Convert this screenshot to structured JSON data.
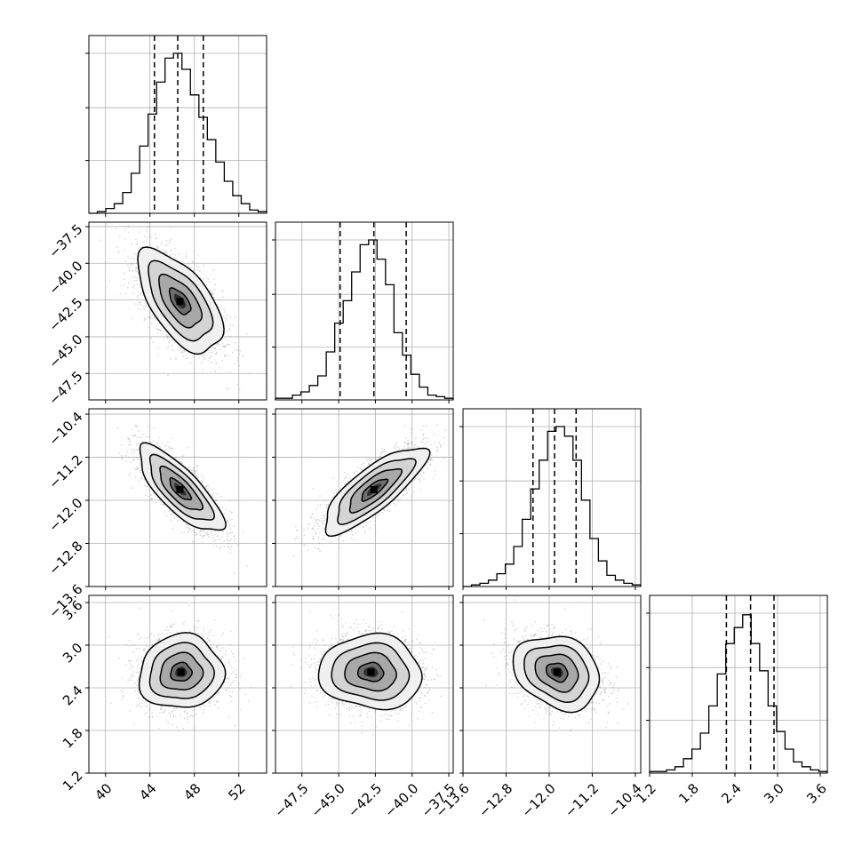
{
  "chart_data": {
    "type": "corner",
    "title": "",
    "grid": true,
    "parameters": [
      {
        "range": [
          38.5,
          54.5
        ],
        "ticks": [
          40,
          44,
          48,
          52
        ],
        "tick_labels": [
          "40",
          "44",
          "48",
          "52"
        ],
        "quantiles": [
          44.4,
          46.5,
          48.8
        ]
      },
      {
        "range": [
          -49.3,
          -37.2
        ],
        "ticks": [
          -47.5,
          -45.0,
          -42.5,
          -40.0,
          -37.5
        ],
        "tick_labels": [
          "−47.5",
          "−45.0",
          "−42.5",
          "−40.0",
          "−37.5"
        ],
        "quantiles": [
          -44.9,
          -42.6,
          -40.4
        ]
      },
      {
        "range": [
          -13.6,
          -10.3
        ],
        "ticks": [
          -13.6,
          -12.8,
          -12.0,
          -11.2,
          -10.4
        ],
        "tick_labels": [
          "−13.6",
          "−12.8",
          "−12.0",
          "−11.2",
          "−10.4"
        ],
        "quantiles": [
          -12.3,
          -11.9,
          -11.5
        ]
      },
      {
        "range": [
          1.2,
          3.7
        ],
        "ticks": [
          1.2,
          1.8,
          2.4,
          3.0,
          3.6
        ],
        "tick_labels": [
          "1.2",
          "1.8",
          "2.4",
          "3.0",
          "3.6"
        ],
        "quantiles": [
          2.28,
          2.62,
          2.95
        ]
      }
    ],
    "histograms": [
      {
        "param": 0,
        "values": [
          0,
          0.01,
          0.03,
          0.06,
          0.13,
          0.25,
          0.42,
          0.62,
          0.82,
          0.97,
          1.0,
          0.9,
          0.74,
          0.6,
          0.46,
          0.32,
          0.2,
          0.11,
          0.06,
          0.02,
          0.01
        ]
      },
      {
        "param": 1,
        "values": [
          0.01,
          0.01,
          0.03,
          0.05,
          0.09,
          0.15,
          0.3,
          0.48,
          0.62,
          0.8,
          0.97,
          1.0,
          0.88,
          0.72,
          0.42,
          0.28,
          0.16,
          0.08,
          0.03,
          0.02,
          0.01
        ]
      },
      {
        "param": 2,
        "values": [
          0,
          0.01,
          0.02,
          0.04,
          0.08,
          0.14,
          0.25,
          0.42,
          0.61,
          0.79,
          0.97,
          1.0,
          0.94,
          0.79,
          0.54,
          0.3,
          0.16,
          0.07,
          0.04,
          0.02,
          0.01
        ]
      },
      {
        "param": 3,
        "values": [
          0.01,
          0.01,
          0.02,
          0.04,
          0.09,
          0.15,
          0.25,
          0.42,
          0.62,
          0.81,
          0.91,
          0.99,
          0.81,
          0.64,
          0.42,
          0.26,
          0.15,
          0.07,
          0.04,
          0.02,
          0.01
        ]
      }
    ],
    "pairs": [
      {
        "x": 0,
        "y": 1,
        "center": [
          46.7,
          -42.6
        ],
        "sd": [
          1.9,
          1.75
        ],
        "rho": -0.6
      },
      {
        "x": 0,
        "y": 2,
        "center": [
          46.7,
          -11.8
        ],
        "sd": [
          1.9,
          0.4
        ],
        "rho": -0.78
      },
      {
        "x": 1,
        "y": 2,
        "center": [
          -42.6,
          -11.8
        ],
        "sd": [
          1.75,
          0.4
        ],
        "rho": 0.8
      },
      {
        "x": 0,
        "y": 3,
        "center": [
          46.8,
          2.62
        ],
        "sd": [
          1.9,
          0.26
        ],
        "rho": 0.05
      },
      {
        "x": 1,
        "y": 3,
        "center": [
          -42.8,
          2.62
        ],
        "sd": [
          1.75,
          0.26
        ],
        "rho": -0.05
      },
      {
        "x": 2,
        "y": 3,
        "center": [
          -11.85,
          2.62
        ],
        "sd": [
          0.4,
          0.26
        ],
        "rho": -0.22
      }
    ],
    "contour_levels_sigma": [
      0.5,
      1.0,
      1.5,
      2.0
    ]
  }
}
